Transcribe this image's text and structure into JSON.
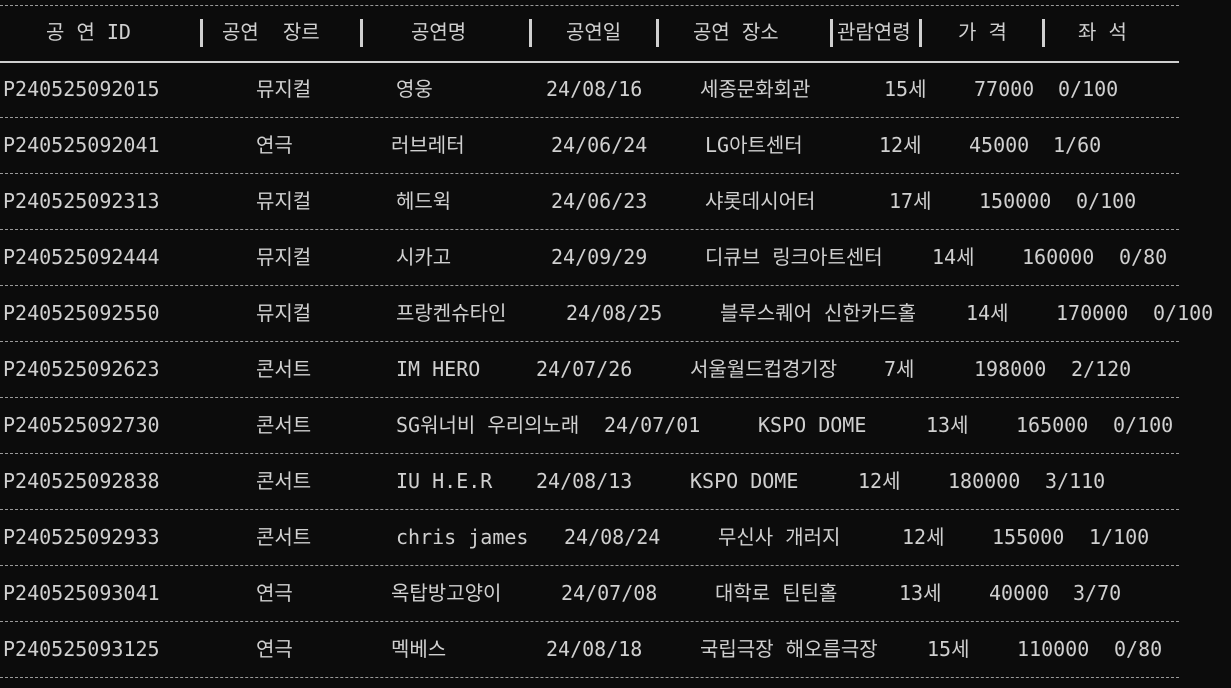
{
  "columns": [
    "공 연 ID",
    "공연  장르",
    "공연명",
    "공연일",
    "공연 장소",
    "관람연령",
    "가 격",
    "좌 석"
  ],
  "rows": [
    {
      "id": "P240525092015",
      "genre": "뮤지컬",
      "title": "영웅",
      "date": "24/08/16",
      "venue": "세종문화회관",
      "age": "15세",
      "price": "77000",
      "seats": "0/100"
    },
    {
      "id": "P240525092041",
      "genre": "연극",
      "title": "러브레터",
      "date": "24/06/24",
      "venue": "LG아트센터",
      "age": "12세",
      "price": "45000",
      "seats": "1/60"
    },
    {
      "id": "P240525092313",
      "genre": "뮤지컬",
      "title": "헤드윅",
      "date": "24/06/23",
      "venue": "샤롯데시어터",
      "age": "17세",
      "price": "150000",
      "seats": "0/100"
    },
    {
      "id": "P240525092444",
      "genre": "뮤지컬",
      "title": "시카고",
      "date": "24/09/29",
      "venue": "디큐브 링크아트센터",
      "age": "14세",
      "price": "160000",
      "seats": "0/80"
    },
    {
      "id": "P240525092550",
      "genre": "뮤지컬",
      "title": "프랑켄슈타인",
      "date": "24/08/25",
      "venue": "블루스퀘어 신한카드홀",
      "age": "14세",
      "price": "170000",
      "seats": "0/100"
    },
    {
      "id": "P240525092623",
      "genre": "콘서트",
      "title": "IM HERO",
      "date": "24/07/26",
      "venue": "서울월드컵경기장",
      "age": "7세",
      "price": "198000",
      "seats": "2/120"
    },
    {
      "id": "P240525092730",
      "genre": "콘서트",
      "title": "SG워너비 우리의노래",
      "date": "24/07/01",
      "venue": "KSPO DOME",
      "age": "13세",
      "price": "165000",
      "seats": "0/100"
    },
    {
      "id": "P240525092838",
      "genre": "콘서트",
      "title": "IU H.E.R",
      "date": "24/08/13",
      "venue": "KSPO DOME",
      "age": "12세",
      "price": "180000",
      "seats": "3/110"
    },
    {
      "id": "P240525092933",
      "genre": "콘서트",
      "title": "chris james",
      "date": "24/08/24",
      "venue": "무신사 개러지",
      "age": "12세",
      "price": "155000",
      "seats": "1/100"
    },
    {
      "id": "P240525093041",
      "genre": "연극",
      "title": "옥탑방고양이",
      "date": "24/07/08",
      "venue": "대학로 틴틴홀",
      "age": "13세",
      "price": "40000",
      "seats": "3/70"
    },
    {
      "id": "P240525093125",
      "genre": "연극",
      "title": "멕베스",
      "date": "24/08/18",
      "venue": "국립극장 해오름극장",
      "age": "15세",
      "price": "110000",
      "seats": "0/80"
    }
  ]
}
